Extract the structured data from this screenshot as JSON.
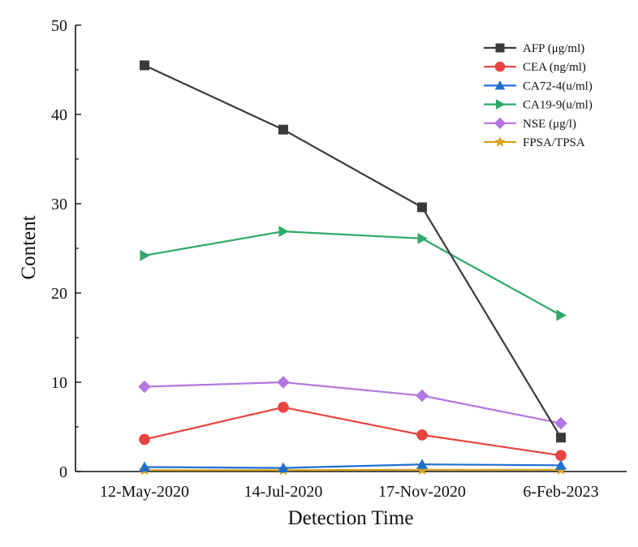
{
  "chart_data": {
    "type": "line",
    "title": "",
    "xlabel": "Detection Time",
    "ylabel": "Content",
    "ylim": [
      0,
      50
    ],
    "yticks": [
      0,
      10,
      20,
      30,
      40,
      50
    ],
    "categories": [
      "12-May-2020",
      "14-Jul-2020",
      "17-Nov-2020",
      "6-Feb-2023"
    ],
    "grid": false,
    "legend_position": "top-right",
    "series": [
      {
        "name": "AFP (μg/ml)",
        "values": [
          45.5,
          38.3,
          29.6,
          3.8
        ],
        "color": "#3a3a3a",
        "marker": "square"
      },
      {
        "name": "CEA (ng/ml)",
        "values": [
          3.6,
          7.2,
          4.1,
          1.8
        ],
        "color": "#e8433e",
        "marker": "circle"
      },
      {
        "name": "CA72-4(u/ml)",
        "values": [
          0.5,
          0.4,
          0.8,
          0.7
        ],
        "color": "#1f6fcf",
        "marker": "triangle-up"
      },
      {
        "name": "CA19-9(u/ml)",
        "values": [
          24.2,
          26.9,
          26.1,
          17.5
        ],
        "color": "#2fa86a",
        "marker": "triangle-right"
      },
      {
        "name": "NSE (μg/l)",
        "values": [
          9.5,
          10.0,
          8.5,
          5.4
        ],
        "color": "#b277e0",
        "marker": "diamond"
      },
      {
        "name": "FPSA/TPSA",
        "values": [
          0.15,
          0.15,
          0.2,
          0.2
        ],
        "color": "#d9a21b",
        "marker": "star"
      }
    ]
  }
}
